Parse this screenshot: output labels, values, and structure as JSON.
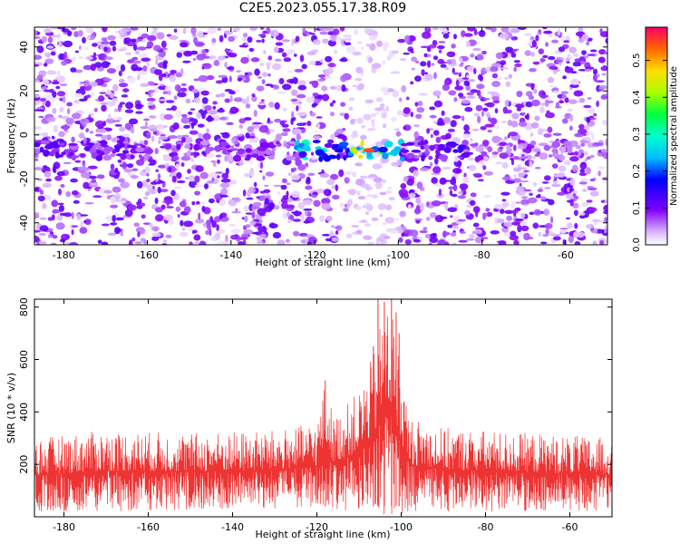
{
  "title": "C2E5.2023.055.17.38.R09",
  "chart_data": [
    {
      "type": "heatmap",
      "xlabel": "Height of straight line (km)",
      "ylabel": "Frequency (Hz)",
      "xlim": [
        -187,
        -50
      ],
      "ylim": [
        -50,
        49
      ],
      "xticks": [
        -180,
        -160,
        -140,
        -120,
        -100,
        -80,
        -60
      ],
      "yticks": [
        -40,
        -20,
        0,
        20,
        40
      ],
      "colorbar": {
        "label": "Normalized spectral amplitude",
        "range": [
          0,
          0.59
        ],
        "ticks": [
          0.0,
          0.1,
          0.2,
          0.3,
          0.4,
          0.5
        ],
        "tick_labels": [
          "0.0",
          "0.1",
          "0.2",
          "0.3",
          "0.4",
          "0.5"
        ]
      },
      "band": {
        "frequency_hz": -7,
        "segments": [
          {
            "x_from": -187,
            "x_to": -163,
            "amplitude": 0.12
          },
          {
            "x_from": -163,
            "x_to": -125,
            "amplitude": 0.09
          },
          {
            "x_from": -125,
            "x_to": -117,
            "amplitude": 0.28
          },
          {
            "x_from": -117,
            "x_to": -111,
            "amplitude": 0.22
          },
          {
            "x_from": -111,
            "x_to": -104,
            "amplitude": 0.45
          },
          {
            "x_from": -104,
            "x_to": -99,
            "amplitude": 0.3
          },
          {
            "x_from": -99,
            "x_to": -93,
            "amplitude": 0.12
          },
          {
            "x_from": -93,
            "x_to": -83,
            "amplitude": 0.14
          },
          {
            "x_from": -83,
            "x_to": -50,
            "amplitude": 0.08
          }
        ],
        "peak": {
          "x": -107,
          "frequency_hz": -7,
          "amplitude": 0.55
        }
      },
      "background_amplitude": [
        0,
        0.12
      ],
      "quiet_region_x": [
        -112,
        -100
      ]
    },
    {
      "type": "line",
      "xlabel": "Height of straight line (km)",
      "ylabel": "SNR (10 * v/v)",
      "xlim": [
        -187,
        -50
      ],
      "ylim": [
        0,
        830
      ],
      "xticks": [
        -180,
        -160,
        -140,
        -120,
        -100,
        -80,
        -60
      ],
      "yticks": [
        200,
        400,
        600,
        800
      ],
      "color": "#ee3333",
      "envelope": [
        {
          "x": -187,
          "low": 20,
          "high": 300
        },
        {
          "x": -170,
          "low": 20,
          "high": 330
        },
        {
          "x": -150,
          "low": 25,
          "high": 320
        },
        {
          "x": -130,
          "low": 25,
          "high": 330
        },
        {
          "x": -120,
          "low": 30,
          "high": 360
        },
        {
          "x": -118,
          "low": 40,
          "high": 520
        },
        {
          "x": -116,
          "low": 30,
          "high": 380
        },
        {
          "x": -110,
          "low": 20,
          "high": 480
        },
        {
          "x": -106,
          "low": 5,
          "high": 650
        },
        {
          "x": -104,
          "low": 5,
          "high": 830
        },
        {
          "x": -102,
          "low": 5,
          "high": 800
        },
        {
          "x": -100,
          "low": 10,
          "high": 560
        },
        {
          "x": -98,
          "low": 20,
          "high": 380
        },
        {
          "x": -90,
          "low": 20,
          "high": 340
        },
        {
          "x": -80,
          "low": 20,
          "high": 330
        },
        {
          "x": -70,
          "low": 20,
          "high": 320
        },
        {
          "x": -50,
          "low": 20,
          "high": 300
        }
      ],
      "spikes": [
        {
          "x": -118,
          "y": 520
        },
        {
          "x": -106.6,
          "y": 650
        },
        {
          "x": -105.5,
          "y": 830
        },
        {
          "x": -104,
          "y": 820
        },
        {
          "x": -102.3,
          "y": 830
        },
        {
          "x": -101.2,
          "y": 780
        },
        {
          "x": -100.5,
          "y": 700
        }
      ]
    }
  ]
}
